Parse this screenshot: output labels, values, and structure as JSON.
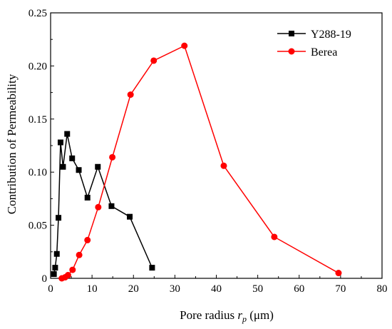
{
  "chart_data": {
    "type": "line",
    "xlabel": "Pore radius ",
    "xlabel_var": "r",
    "xlabel_sub": "p",
    "xlabel_unit": " (μm)",
    "ylabel": "Contribution of Permeability",
    "xlim": [
      0,
      80
    ],
    "ylim": [
      0,
      0.25
    ],
    "x_ticks": [
      0,
      10,
      20,
      30,
      40,
      50,
      60,
      70,
      80
    ],
    "x_tick_labels": [
      "0",
      "10",
      "20",
      "30",
      "40",
      "50",
      "60",
      "70",
      "80"
    ],
    "y_ticks": [
      0,
      0.05,
      0.1,
      0.15,
      0.2,
      0.25
    ],
    "y_tick_labels": [
      "0",
      "0.05",
      "0.10",
      "0.15",
      "0.20",
      "0.25"
    ],
    "grid": false,
    "legend_position": "top-right",
    "series": [
      {
        "name": "Y288-19",
        "color": "#000000",
        "marker": "square",
        "x": [
          0.8,
          1.1,
          1.5,
          1.9,
          2.4,
          3.0,
          4.0,
          5.2,
          6.8,
          8.9,
          11.4,
          14.7,
          19.1,
          24.5
        ],
        "y": [
          0.004,
          0.01,
          0.023,
          0.057,
          0.128,
          0.105,
          0.136,
          0.113,
          0.102,
          0.076,
          0.105,
          0.068,
          0.058,
          0.01
        ]
      },
      {
        "name": "Berea",
        "color": "#ff0000",
        "marker": "circle",
        "x": [
          2.7,
          3.5,
          4.2,
          5.3,
          6.9,
          8.9,
          11.5,
          14.9,
          19.3,
          24.9,
          32.3,
          41.8,
          54.0,
          69.5
        ],
        "y": [
          0.0,
          0.001,
          0.003,
          0.008,
          0.022,
          0.036,
          0.067,
          0.114,
          0.173,
          0.205,
          0.219,
          0.106,
          0.039,
          0.005
        ]
      }
    ]
  }
}
